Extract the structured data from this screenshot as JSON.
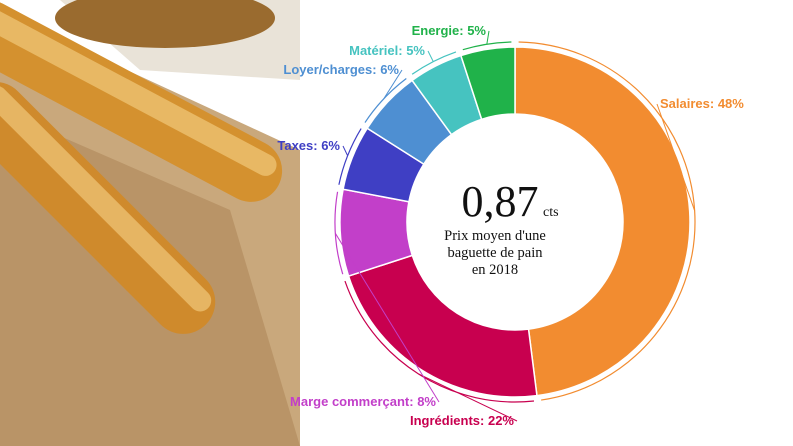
{
  "chart_data": {
    "type": "pie",
    "variant": "donut",
    "center": {
      "value": "0,87",
      "unit": "cts",
      "caption_lines": [
        "Prix moyen d'une",
        "baguette de pain",
        "en 2018"
      ]
    },
    "slices": [
      {
        "label": "Salaires: 48%",
        "value": 48,
        "color": "#F28C30"
      },
      {
        "label": "Ingrédients: 22%",
        "value": 22,
        "color": "#C8004F"
      },
      {
        "label": "Marge commerçant: 8%",
        "value": 8,
        "color": "#C23FC9"
      },
      {
        "label": "Taxes: 6%",
        "value": 6,
        "color": "#3F3FC4"
      },
      {
        "label": "Loyer/charges: 6%",
        "value": 6,
        "color": "#4E8FD2"
      },
      {
        "label": "Matériel: 5%",
        "value": 5,
        "color": "#46C3C0"
      },
      {
        "label": "Energie: 5%",
        "value": 5,
        "color": "#20B24A"
      }
    ],
    "legend": "none"
  }
}
